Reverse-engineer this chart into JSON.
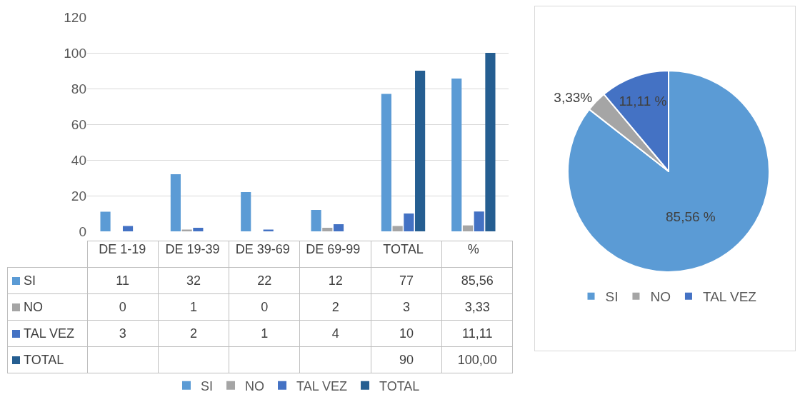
{
  "chart_data": [
    {
      "type": "bar",
      "categories": [
        "DE 1-19",
        "DE 19-39",
        "DE 39-69",
        "DE 69-99",
        "TOTAL",
        "%"
      ],
      "series": [
        {
          "name": "SI",
          "color": "#5b9bd5",
          "values": [
            11,
            32,
            22,
            12,
            77,
            85.56
          ],
          "value_labels": [
            "11",
            "32",
            "22",
            "12",
            "77",
            "85,56"
          ]
        },
        {
          "name": "NO",
          "color": "#a5a5a5",
          "values": [
            0,
            1,
            0,
            2,
            3,
            3.33
          ],
          "value_labels": [
            "0",
            "1",
            "0",
            "2",
            "3",
            "3,33"
          ]
        },
        {
          "name": "TAL VEZ",
          "color": "#4472c4",
          "values": [
            3,
            2,
            1,
            4,
            10,
            11.11
          ],
          "value_labels": [
            "3",
            "2",
            "1",
            "4",
            "10",
            "11,11"
          ]
        },
        {
          "name": "TOTAL",
          "color": "#255e91",
          "values": [
            null,
            null,
            null,
            null,
            90,
            100
          ],
          "value_labels": [
            null,
            null,
            null,
            null,
            "90",
            "100,00"
          ]
        }
      ],
      "ylim": [
        0,
        120
      ],
      "yticks": [
        0,
        20,
        40,
        60,
        80,
        100,
        120
      ],
      "grid": "y",
      "legend": "bottom"
    },
    {
      "type": "pie",
      "categories": [
        "SI",
        "NO",
        "TAL VEZ"
      ],
      "values": [
        85.56,
        3.33,
        11.11
      ],
      "colors": [
        "#5b9bd5",
        "#a5a5a5",
        "#4472c4"
      ],
      "value_labels": [
        "85,56 %",
        "3,33%",
        "11,11 %"
      ],
      "legend": "bottom"
    }
  ]
}
